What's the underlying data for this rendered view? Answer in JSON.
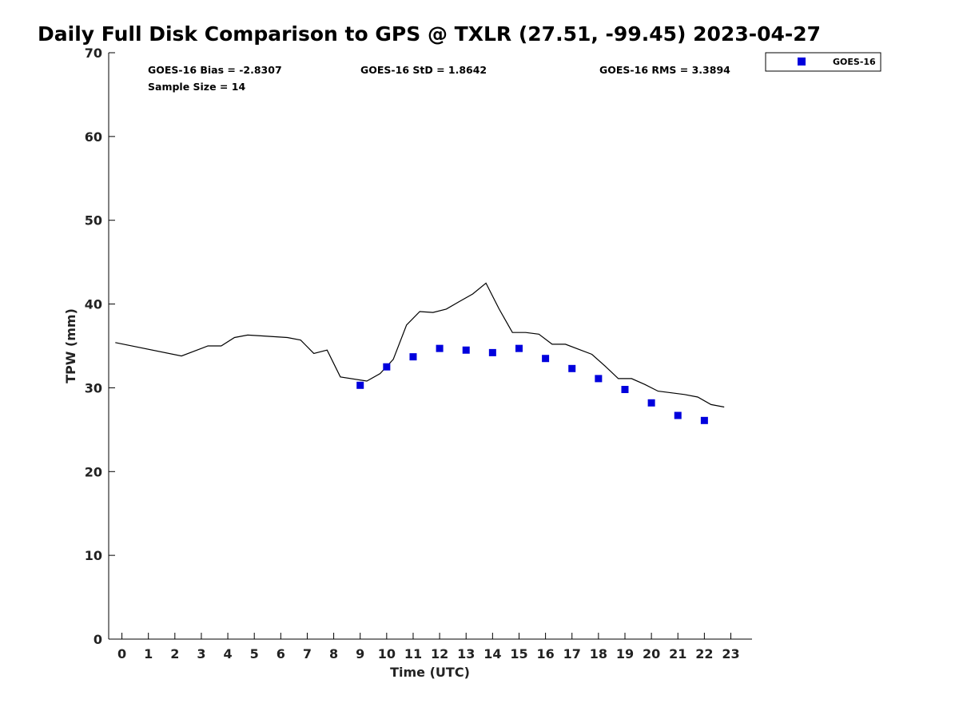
{
  "chart_data": {
    "type": "scatter",
    "title": "Daily Full Disk Comparison to GPS @ TXLR (27.51, -99.45) 2023-04-27",
    "xlabel": "Time (UTC)",
    "ylabel": "TPW (mm)",
    "xlim": [
      -0.5,
      23.8
    ],
    "ylim": [
      0,
      70
    ],
    "x_ticks": [
      "0",
      "1",
      "2",
      "3",
      "4",
      "5",
      "6",
      "7",
      "8",
      "9",
      "10",
      "11",
      "12",
      "13",
      "14",
      "15",
      "16",
      "17",
      "18",
      "19",
      "20",
      "21",
      "22",
      "23"
    ],
    "y_ticks": [
      "0",
      "10",
      "20",
      "30",
      "40",
      "50",
      "60",
      "70"
    ],
    "stats": {
      "bias": "GOES-16 Bias = -2.8307",
      "std": "GOES-16 StD = 1.8642",
      "rms": "GOES-16 RMS = 3.3894",
      "sample": "Sample Size = 14"
    },
    "legend": {
      "label": "GOES-16",
      "position": "top-right"
    },
    "series": [
      {
        "name": "GPS",
        "kind": "line",
        "color": "#000000",
        "x": [
          -0.25,
          2.25,
          3.25,
          3.75,
          4.25,
          4.75,
          5.25,
          6.25,
          6.75,
          7.25,
          7.75,
          8.25,
          9.25,
          9.75,
          10.25,
          10.75,
          11.25,
          11.75,
          12.25,
          12.75,
          13.25,
          13.75,
          14.25,
          14.75,
          15.25,
          15.75,
          16.25,
          16.75,
          17.25,
          17.75,
          18.25,
          18.75,
          19.25,
          19.75,
          20.25,
          20.75,
          21.25,
          21.75,
          22.25,
          22.75
        ],
        "y": [
          35.4,
          33.8,
          35.0,
          35.0,
          36.0,
          36.3,
          36.2,
          36.0,
          35.7,
          34.1,
          34.5,
          31.3,
          30.8,
          31.7,
          33.4,
          37.5,
          39.1,
          39.0,
          39.4,
          40.3,
          41.2,
          42.5,
          39.4,
          36.6,
          36.6,
          36.4,
          35.2,
          35.2,
          34.6,
          34.0,
          32.6,
          31.1,
          31.1,
          30.4,
          29.6,
          29.4,
          29.2,
          28.9,
          28.0,
          27.7
        ]
      },
      {
        "name": "GOES-16",
        "kind": "scatter",
        "color": "#0000dd",
        "x": [
          9,
          10,
          11,
          12,
          13,
          14,
          15,
          16,
          17,
          18,
          19,
          20,
          21,
          22
        ],
        "y": [
          30.3,
          32.5,
          33.7,
          34.7,
          34.5,
          34.2,
          34.7,
          33.5,
          32.3,
          31.1,
          29.8,
          28.2,
          26.7,
          26.1
        ]
      }
    ]
  }
}
